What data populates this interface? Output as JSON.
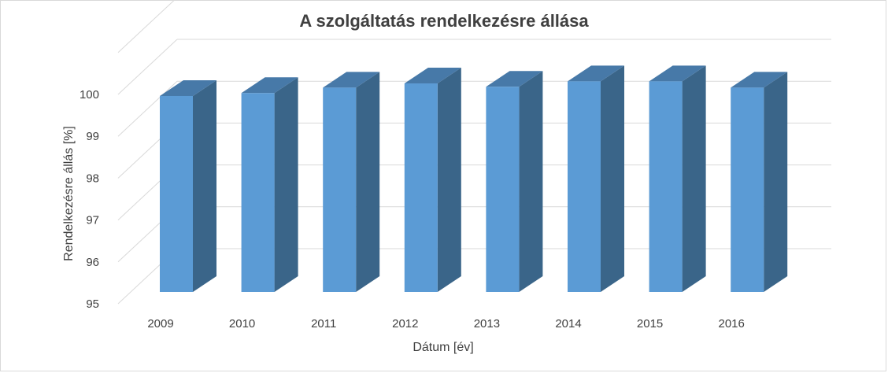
{
  "chart_data": {
    "type": "bar",
    "title": "A szolgáltatás rendelkezésre állása",
    "xlabel": "Dátum [év]",
    "ylabel": "Rendelkezésre  állás [%]",
    "categories": [
      "2009",
      "2010",
      "2011",
      "2012",
      "2013",
      "2014",
      "2015",
      "2016"
    ],
    "values": [
      99.85,
      99.92,
      100.05,
      100.15,
      100.07,
      100.2,
      100.2,
      100.05
    ],
    "ylim": [
      95,
      101
    ],
    "yticks": [
      "95",
      "96",
      "97",
      "98",
      "99",
      "100"
    ],
    "grid": true,
    "legend": false,
    "three_d": true,
    "colors": {
      "front": "#5b9bd5",
      "side": "#3a6589",
      "top": "#4779a8",
      "grid": "#d9d9d9"
    }
  }
}
